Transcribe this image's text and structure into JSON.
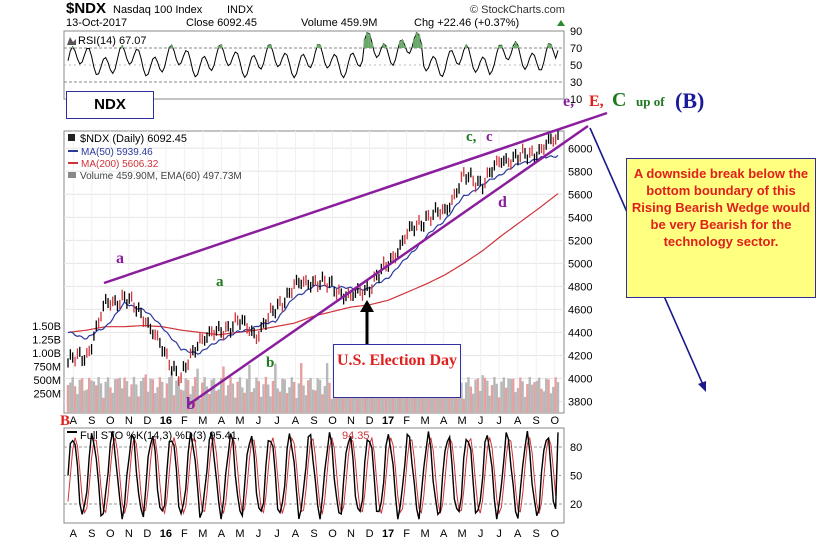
{
  "header": {
    "symbol": "$NDX",
    "name": "Nasdaq 100 Index",
    "exchange": "INDX",
    "date": "13-Oct-2017",
    "close_label": "Close 6092.45",
    "volume_label": "Volume 459.9M",
    "chg_label": "Chg +22.46 (+0.37%)",
    "brand": "© StockCharts.com"
  },
  "rsi": {
    "label": "RSI(14) 67.07",
    "ticks": [
      "90",
      "70",
      "50",
      "30",
      "10"
    ]
  },
  "price": {
    "legend_title": "$NDX (Daily) 6092.45",
    "ma50": "MA(50) 5939.46",
    "ma200": "MA(200) 5606.32",
    "volume": "Volume 459.90M, EMA(60) 497.73M",
    "ticks": [
      "6000",
      "5800",
      "5600",
      "5400",
      "5200",
      "5000",
      "4800",
      "4600",
      "4400",
      "4200",
      "4000",
      "3800"
    ],
    "vol_ticks": [
      "1.50B",
      "1.25B",
      "1.00B",
      "750M",
      "500M",
      "250M"
    ]
  },
  "sto": {
    "label_prefix": "Full STO %K(14,3) %D(3) 95.41,",
    "label_d": "94.35",
    "ticks": [
      "80",
      "50",
      "20"
    ]
  },
  "months": [
    "A",
    "S",
    "O",
    "N",
    "D",
    "16",
    "F",
    "M",
    "A",
    "M",
    "J",
    "J",
    "A",
    "S",
    "O",
    "N",
    "D",
    "17",
    "F",
    "M",
    "A",
    "M",
    "J",
    "J",
    "A",
    "S",
    "O"
  ],
  "annotations": {
    "ndx_box": "NDX",
    "b_red": "B",
    "a1": "a",
    "a2": "a",
    "b_green": "b",
    "b_purple": "b",
    "cc_green": "c,",
    "cc_purple": "c",
    "d": "d",
    "e": "e,",
    "E": "E,",
    "C": "C",
    "upof": "up of",
    "B_blue": "(B)",
    "election": "U.S. Election Day",
    "note": "A downside break below the bottom boundary of this Rising Bearish Wedge would be very Bearish for the technology sector."
  },
  "colors": {
    "price": "#000000",
    "ma50": "#2a3a9f",
    "ma200": "#d0343a",
    "wedge": "#8a1e9c",
    "rsi_fill": "#6aa86a",
    "note_bg": "#ffff80",
    "note_text": "#e0201c",
    "arrow": "#1a1a8c"
  },
  "chart_data": {
    "type": "line",
    "title": "$NDX Nasdaq 100 Index INDX",
    "series": [
      {
        "name": "$NDX (Daily)",
        "x": [
          "2015-08",
          "2015-09",
          "2015-10",
          "2015-11",
          "2015-12",
          "2016-01",
          "2016-02",
          "2016-03",
          "2016-04",
          "2016-05",
          "2016-06",
          "2016-07",
          "2016-08",
          "2016-09",
          "2016-10",
          "2016-11",
          "2016-12",
          "2017-01",
          "2017-02",
          "2017-03",
          "2017-04",
          "2017-05",
          "2017-06",
          "2017-07",
          "2017-08",
          "2017-09",
          "2017-10"
        ],
        "values": [
          4150,
          4200,
          4650,
          4700,
          4550,
          4250,
          4000,
          4350,
          4400,
          4500,
          4380,
          4600,
          4800,
          4850,
          4800,
          4700,
          4800,
          5000,
          5250,
          5400,
          5450,
          5750,
          5700,
          5900,
          5920,
          5980,
          6092
        ]
      },
      {
        "name": "MA(50)",
        "values": [
          4400,
          4350,
          4450,
          4650,
          4600,
          4450,
          4250,
          4220,
          4330,
          4400,
          4450,
          4500,
          4700,
          4800,
          4800,
          4780,
          4780,
          4880,
          5050,
          5230,
          5380,
          5580,
          5680,
          5780,
          5870,
          5910,
          5939
        ]
      },
      {
        "name": "MA(200)",
        "values": [
          4400,
          4420,
          4450,
          4450,
          4460,
          4450,
          4420,
          4400,
          4380,
          4400,
          4420,
          4450,
          4480,
          4540,
          4580,
          4620,
          4640,
          4680,
          4750,
          4820,
          4900,
          5000,
          5110,
          5240,
          5360,
          5480,
          5606
        ]
      }
    ],
    "ylim": [
      3700,
      6150
    ],
    "rsi": {
      "label": "RSI(14)",
      "last": 67.07,
      "ylim": [
        10,
        90
      ]
    },
    "stochastic": {
      "label": "Full STO %K(14,3) %D(3)",
      "k": 95.41,
      "d": 94.35,
      "ylim": [
        0,
        100
      ]
    }
  }
}
